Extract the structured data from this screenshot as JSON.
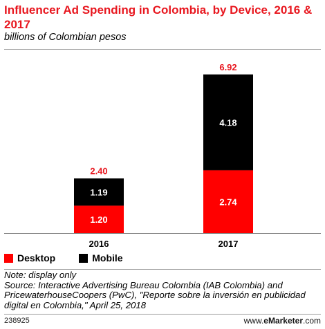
{
  "title": "Influencer Ad Spending in Colombia, by Device, 2016 & 2017",
  "subtitle": "billions of Colombian pesos",
  "chart_data": {
    "type": "bar",
    "stacked": true,
    "categories": [
      "2016",
      "2017"
    ],
    "series": [
      {
        "name": "Desktop",
        "values": [
          1.2,
          2.74
        ],
        "labels": [
          "1.20",
          "2.74"
        ],
        "color": "#ff0000"
      },
      {
        "name": "Mobile",
        "values": [
          1.19,
          4.18
        ],
        "labels": [
          "1.19",
          "4.18"
        ],
        "color": "#000000"
      }
    ],
    "totals": [
      2.4,
      6.92
    ],
    "total_labels": [
      "2.40",
      "6.92"
    ],
    "total_label_color": "#e8171f",
    "ylim": [
      0,
      7.4
    ],
    "grid": false,
    "legend_position": "bottom-left"
  },
  "legend": [
    {
      "label": "Desktop",
      "color": "#ff0000"
    },
    {
      "label": "Mobile",
      "color": "#000000"
    }
  ],
  "note": "Note: display only",
  "source": "Source: Interactive Advertising Bureau Colombia (IAB Colombia) and PricewaterhouseCoopers (PwC), \"Reporte sobre la inversión en publicidad digital en Colombia,\" April 25, 2018",
  "chart_id": "238925",
  "brand": {
    "prefix": "www.",
    "name": "eMarketer",
    "suffix": ".com"
  }
}
